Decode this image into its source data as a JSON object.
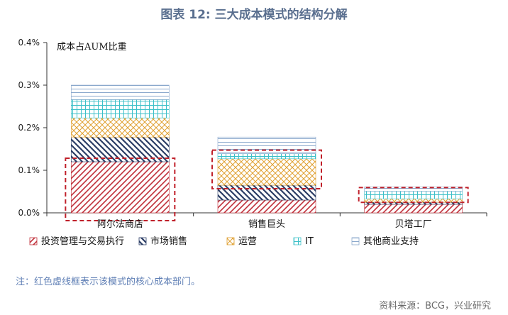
{
  "title": "图表 12: 三大成本模式的结构分解",
  "footnote": "注：红色虚线框表示该模式的核心成本部门。",
  "source": "资料来源：BCG，兴业研究",
  "colors": {
    "accent_title": "#5a6f8f",
    "highlight_box": "#c0202a"
  },
  "chart_data": {
    "type": "bar",
    "stacked": true,
    "annotation": "成本占AUM比重",
    "categories": [
      "阿尔法商店",
      "销售巨头",
      "贝塔工厂"
    ],
    "ylim": [
      0,
      0.004
    ],
    "yticks": [
      "0.0%",
      "0.1%",
      "0.2%",
      "0.3%",
      "0.4%"
    ],
    "series": [
      {
        "name": "投资管理与交易执行",
        "color": "#c0303a",
        "pattern": "diag-up",
        "values": [
          0.0012,
          0.0003,
          0.0002
        ]
      },
      {
        "name": "市场销售",
        "color": "#2c3e66",
        "pattern": "diag-down",
        "values": [
          0.00058,
          0.00035,
          5e-05
        ]
      },
      {
        "name": "运营",
        "color": "#e0a030",
        "pattern": "cross",
        "values": [
          0.00045,
          0.00062,
          8e-05
        ]
      },
      {
        "name": "IT",
        "color": "#3cc0c8",
        "pattern": "grid",
        "values": [
          0.00043,
          0.00012,
          0.00018
        ]
      },
      {
        "name": "其他商业支持",
        "color": "#8aa8cc",
        "pattern": "hlines",
        "values": [
          0.00034,
          0.00039,
          0.0001
        ]
      }
    ],
    "highlight": [
      {
        "category": "阿尔法商店",
        "series": [
          "投资管理与交易执行"
        ]
      },
      {
        "category": "销售巨头",
        "series": [
          "运营",
          "IT"
        ]
      },
      {
        "category": "贝塔工厂",
        "series": [
          "IT"
        ]
      }
    ],
    "legend_position": "bottom",
    "grid": false
  }
}
